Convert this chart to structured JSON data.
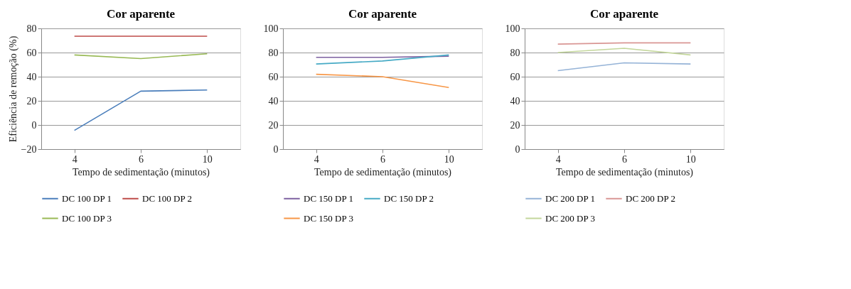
{
  "chart_data": [
    {
      "type": "line",
      "title": "Cor aparente",
      "xlabel": "Tempo de sedimentação (minutos)",
      "ylabel": "Eficiência de remoção (%)",
      "categories": [
        "4",
        "6",
        "10"
      ],
      "ylim": [
        -20,
        80
      ],
      "yticks": [
        -20,
        0,
        20,
        40,
        60,
        80
      ],
      "grid": "y",
      "legend": "bottom",
      "series": [
        {
          "name": "DC 100 DP 1",
          "color": "#4a7ebb",
          "values": [
            -4.5,
            28,
            29
          ]
        },
        {
          "name": "DC 100 DP 2",
          "color": "#be4b48",
          "values": [
            73.5,
            73.5,
            73.5
          ]
        },
        {
          "name": "DC 100 DP 3",
          "color": "#98b954",
          "values": [
            58,
            55,
            59
          ]
        }
      ]
    },
    {
      "type": "line",
      "title": "Cor aparente",
      "xlabel": "Tempo de sedimentação (minutos)",
      "categories": [
        "4",
        "6",
        "10"
      ],
      "ylim": [
        0,
        100
      ],
      "yticks": [
        0,
        20,
        40,
        60,
        80,
        100
      ],
      "grid": "y",
      "legend": "bottom",
      "series": [
        {
          "name": "DC 150 DP 1",
          "color": "#7d60a0",
          "values": [
            76,
            76,
            77
          ]
        },
        {
          "name": "DC 150 DP 2",
          "color": "#46aac5",
          "values": [
            70.5,
            73,
            78
          ]
        },
        {
          "name": "DC 150 DP 3",
          "color": "#f79646",
          "values": [
            62,
            60,
            51
          ]
        }
      ]
    },
    {
      "type": "line",
      "title": "Cor aparente",
      "xlabel": "Tempo de sedimentação (minutos)",
      "categories": [
        "4",
        "6",
        "10"
      ],
      "ylim": [
        0,
        100
      ],
      "yticks": [
        0,
        20,
        40,
        60,
        80,
        100
      ],
      "grid": "y",
      "legend": "bottom",
      "series": [
        {
          "name": "DC 200 DP 1",
          "color": "#95b3d7",
          "values": [
            65,
            71.5,
            70.5
          ]
        },
        {
          "name": "DC 200 DP 2",
          "color": "#d99694",
          "values": [
            87,
            88,
            88
          ]
        },
        {
          "name": "DC 200 DP 3",
          "color": "#c3d69b",
          "values": [
            80,
            83.5,
            78
          ]
        }
      ]
    }
  ]
}
